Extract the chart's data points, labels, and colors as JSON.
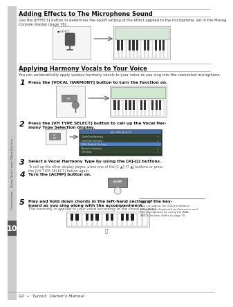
{
  "page_bg": "#ffffff",
  "sidebar_color": "#bbbbbb",
  "sidebar_num_bg": "#555555",
  "sidebar_number": "10",
  "sidebar_text": "Connections – Using Tyros3 with Other Devices –",
  "title1": "Adding Effects to The Microphone Sound",
  "body1": "Use the [EFFECT] button to determine the on/off setting of the effect applied to the microphone, set in the Mixing\nConsole display (page 78).",
  "title2": "Applying Harmony Vocals to Your Voice",
  "body2": "You can automatically apply various harmony vocals to your voice as you sing into the connected microphone.",
  "step1_text": "Press the [VOCAL HARMONY] button to turn the function on.",
  "step2_text": "Press the [VH TYPE SELECT] button to call up the Vocal Har-\nmony Type Selection display.",
  "step3_text": "Select a Vocal Harmony Type by using the [A]–[J] buttons.",
  "step3_sub": "To call up the other display pages, press one of the [1 ▲]–[7 ▲] buttons or press\nthe [VH TYPE SELECT] button again.",
  "step4_text": "Turn the [ACMP] button on.",
  "step5_text": "Play and hold down chords in the left-hand section of the key-\nboard as you sing along with the accompaniment.",
  "step5_sub": "The harmony is applied to your voice according to the chord you play.",
  "note_label": "NOTE",
  "note_text": "You can adjust the volume balance\nbetween the keyboard performance and\nthe microphone by using the [BAL-\nANCE] button. Refer to page 35.",
  "footer": "92  •  Tyros3  Owner's Manual"
}
